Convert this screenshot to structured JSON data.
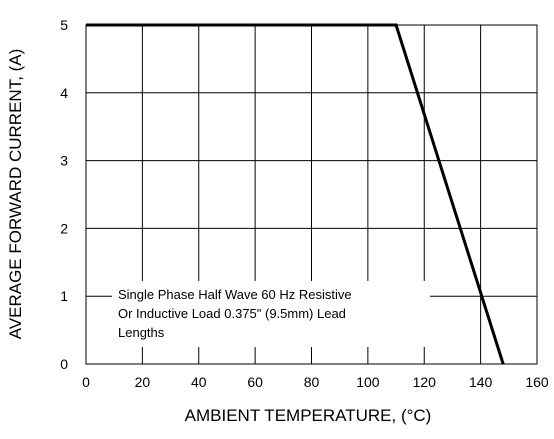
{
  "chart_data": {
    "type": "line",
    "title": "",
    "xlabel": "AMBIENT TEMPERATURE, (°C)",
    "ylabel": "AVERAGE FORWARD CURRENT, (A)",
    "xlim": [
      0,
      160
    ],
    "ylim": [
      0,
      5
    ],
    "xticks": [
      "0",
      "20",
      "40",
      "60",
      "80",
      "100",
      "120",
      "140",
      "160"
    ],
    "yticks": [
      "0",
      "1",
      "2",
      "3",
      "4",
      "5"
    ],
    "grid": true,
    "series": [
      {
        "x": [
          0,
          110,
          148
        ],
        "y": [
          5,
          5,
          0
        ]
      }
    ],
    "annotation": {
      "lines": [
        "Single Phase Half Wave 60 Hz Resistive",
        "Or Inductive Load 0.375\" (9.5mm) Lead",
        "Lengths"
      ]
    },
    "colors": {
      "line": "#000000",
      "grid": "#000000"
    }
  }
}
